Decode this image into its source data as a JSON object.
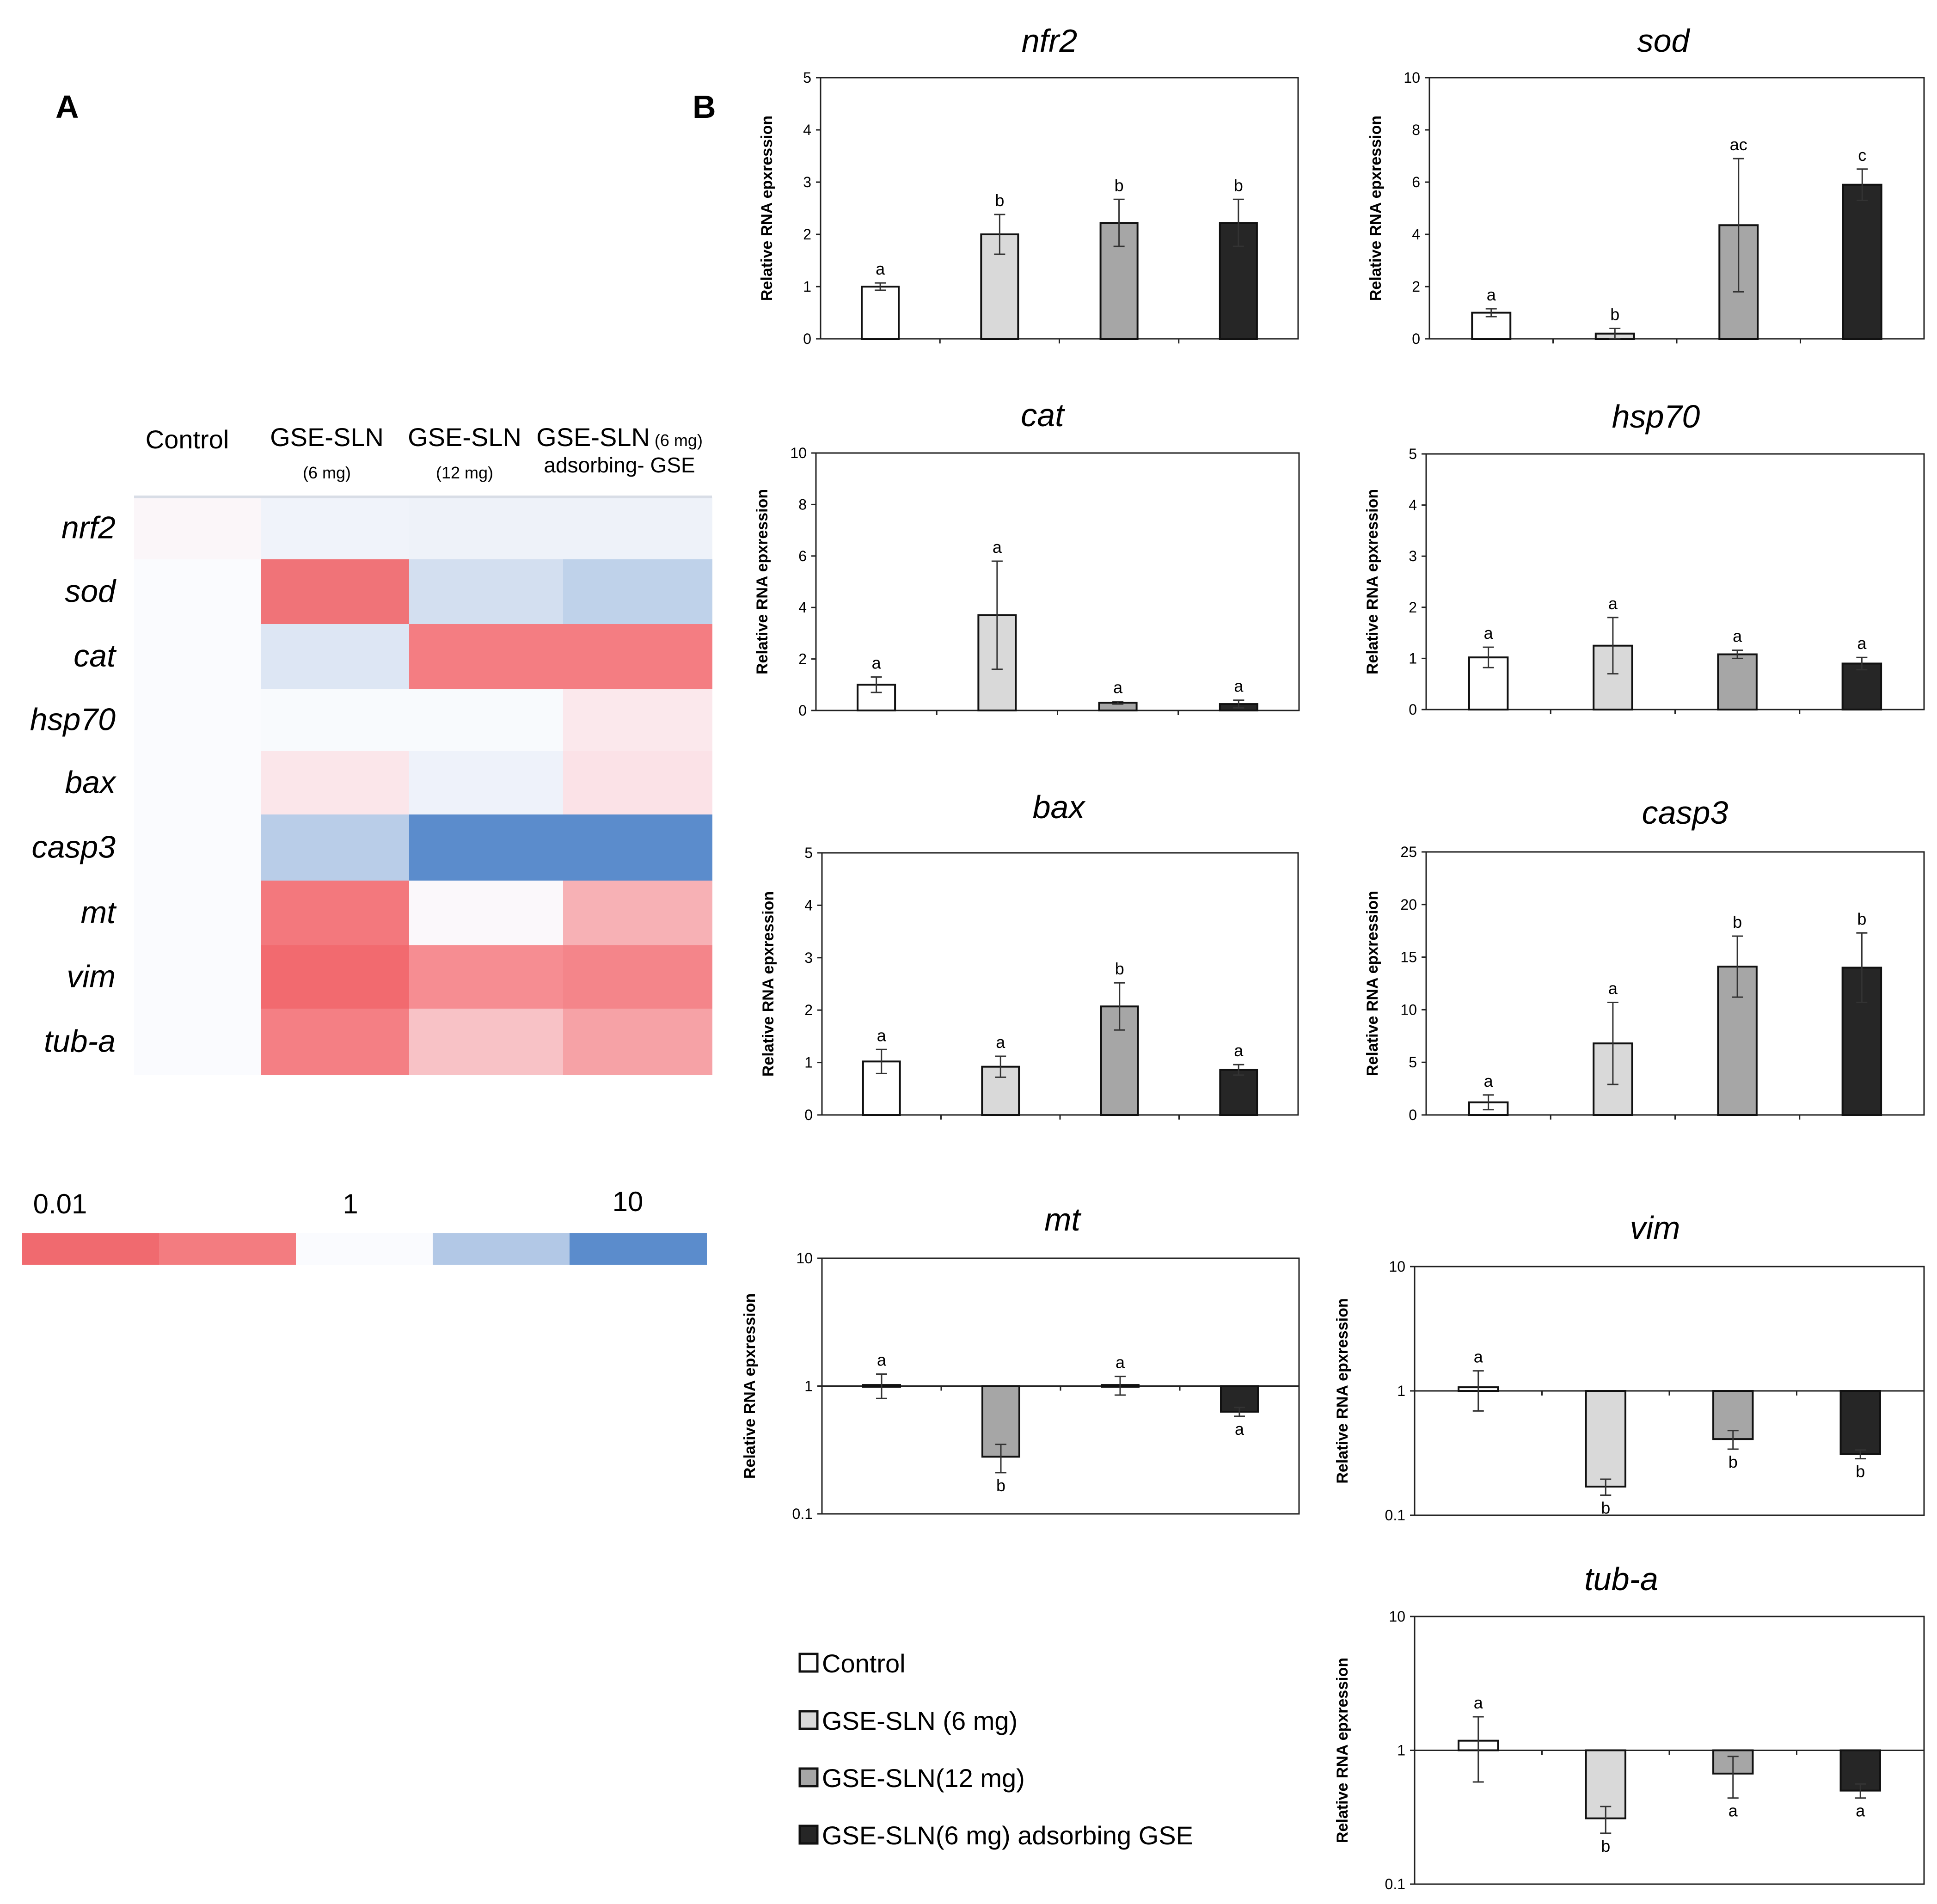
{
  "panel_labels": {
    "A": "A",
    "B": "B"
  },
  "heatmap": {
    "columns": [
      {
        "main": "Control",
        "sub": ""
      },
      {
        "main": "GSE-SLN",
        "sub": "(6 mg)"
      },
      {
        "main": "GSE-SLN",
        "sub": "(12  mg)"
      },
      {
        "main": "GSE-SLN",
        "main_suffix": "(6 mg)",
        "sub": "adsorbing- GSE"
      }
    ],
    "rows": [
      "nrf2",
      "sod",
      "cat",
      "hsp70",
      "bax",
      "casp3",
      "mt",
      "vim",
      "tub-a"
    ],
    "cells": [
      [
        "#fbf6f9",
        "#f0f3fa",
        "#eef2f9",
        "#eef2f9"
      ],
      [
        "#fafbfe",
        "#f07378",
        "#d3dff0",
        "#bfd2ea"
      ],
      [
        "#fafbfe",
        "#dde6f4",
        "#f47d82",
        "#f47d82"
      ],
      [
        "#fafbfe",
        "#f8fafd",
        "#f8fafd",
        "#fbe8ec"
      ],
      [
        "#fafbfe",
        "#fbe6ea",
        "#eef2fa",
        "#fbe2e7"
      ],
      [
        "#fafbfe",
        "#b9cde8",
        "#5b8ccc",
        "#5b8ccc"
      ],
      [
        "#fafbfe",
        "#f3787d",
        "#fbf8fb",
        "#f7b1b5"
      ],
      [
        "#fafbfe",
        "#f26a6f",
        "#f68d92",
        "#f4858a"
      ],
      [
        "#fafbfe",
        "#f47f84",
        "#f8c2c6",
        "#f6a2a6"
      ]
    ],
    "scale": {
      "labels": [
        "0.01",
        "1",
        "10"
      ],
      "colors": [
        "#f06a6f",
        "#f37c80",
        "#fafbfe",
        "#b2c8e6",
        "#5b8ccc"
      ]
    }
  },
  "legend": {
    "items": [
      {
        "label": "Control",
        "color": "#ffffff"
      },
      {
        "label": "GSE-SLN (6 mg)",
        "color": "#d9d9d9"
      },
      {
        "label": "GSE-SLN(12 mg)",
        "color": "#a6a6a6"
      },
      {
        "label": "GSE-SLN(6 mg) adsorbing GSE",
        "color": "#262626"
      }
    ]
  },
  "chart_data": [
    {
      "type": "bar",
      "title": "nfr2",
      "ylabel": "Relative RNA epxression",
      "yscale": "linear",
      "ylim": [
        0,
        5
      ],
      "yticks": [
        "0",
        "1",
        "2",
        "3",
        "4",
        "5"
      ],
      "values": [
        1.0,
        2.0,
        2.22,
        2.22
      ],
      "errors": [
        0.07,
        0.38,
        0.45,
        0.45
      ],
      "labels": [
        "a",
        "b",
        "b",
        "b"
      ]
    },
    {
      "type": "bar",
      "title": "sod",
      "ylabel": "Relative RNA epxression",
      "yscale": "linear",
      "ylim": [
        0,
        10
      ],
      "yticks": [
        "0",
        "2",
        "4",
        "6",
        "8",
        "10"
      ],
      "values": [
        1.0,
        0.2,
        4.35,
        5.9
      ],
      "errors": [
        0.15,
        0.2,
        2.55,
        0.6
      ],
      "labels": [
        "a",
        "b",
        "ac",
        "c"
      ]
    },
    {
      "type": "bar",
      "title": "cat",
      "ylabel": "Relative RNA epxression",
      "yscale": "linear",
      "ylim": [
        0,
        10
      ],
      "yticks": [
        "0",
        "2",
        "4",
        "6",
        "8",
        "10"
      ],
      "values": [
        1.0,
        3.7,
        0.3,
        0.25
      ],
      "errors": [
        0.3,
        2.1,
        0.05,
        0.15
      ],
      "labels": [
        "a",
        "a",
        "a",
        "a"
      ]
    },
    {
      "type": "bar",
      "title": "hsp70",
      "ylabel": "Relative RNA epxression",
      "yscale": "linear",
      "ylim": [
        0,
        5
      ],
      "yticks": [
        "0",
        "1",
        "2",
        "3",
        "4",
        "5"
      ],
      "values": [
        1.02,
        1.25,
        1.08,
        0.9
      ],
      "errors": [
        0.2,
        0.55,
        0.08,
        0.12
      ],
      "labels": [
        "a",
        "a",
        "a",
        "a"
      ]
    },
    {
      "type": "bar",
      "title": "bax",
      "ylabel": "Relative RNA epxression",
      "yscale": "linear",
      "ylim": [
        0,
        5
      ],
      "yticks": [
        "0",
        "1",
        "2",
        "3",
        "4",
        "5"
      ],
      "values": [
        1.02,
        0.92,
        2.07,
        0.86
      ],
      "errors": [
        0.23,
        0.2,
        0.45,
        0.1
      ],
      "labels": [
        "a",
        "a",
        "b",
        "a"
      ]
    },
    {
      "type": "bar",
      "title": "casp3",
      "ylabel": "Relative RNA epxression",
      "yscale": "linear",
      "ylim": [
        0,
        25
      ],
      "yticks": [
        "0",
        "5",
        "10",
        "15",
        "20",
        "25"
      ],
      "values": [
        1.2,
        6.8,
        14.1,
        14.0
      ],
      "errors": [
        0.7,
        3.9,
        2.9,
        3.3
      ],
      "labels": [
        "a",
        "a",
        "b",
        "b"
      ]
    },
    {
      "type": "bar",
      "title": "mt",
      "ylabel": "Relative RNA epxression",
      "yscale": "log",
      "ylim": [
        0.1,
        10
      ],
      "yticks": [
        "0.1",
        "1",
        "10"
      ],
      "values": [
        1.02,
        0.28,
        1.02,
        0.63
      ],
      "errors": [
        0.22,
        0.07,
        0.17,
        0.05
      ],
      "labels": [
        "a",
        "b",
        "a",
        "a"
      ],
      "series_colors": [
        "#ffffff",
        "#a6a6a6",
        "#d9d9d9",
        "#262626"
      ]
    },
    {
      "type": "bar",
      "title": "vim",
      "ylabel": "Relative RNA epxression",
      "yscale": "log",
      "ylim": [
        0.1,
        10
      ],
      "yticks": [
        "0.1",
        "1",
        "10"
      ],
      "values": [
        1.07,
        0.17,
        0.41,
        0.31
      ],
      "errors": [
        0.38,
        0.025,
        0.07,
        0.025
      ],
      "labels": [
        "a",
        "b",
        "b",
        "b"
      ]
    },
    {
      "type": "bar",
      "title": "tub-a",
      "ylabel": "Relative RNA epxression",
      "yscale": "log",
      "ylim": [
        0.1,
        10
      ],
      "yticks": [
        "0.1",
        "1",
        "10"
      ],
      "values": [
        1.18,
        0.31,
        0.67,
        0.5
      ],
      "errors": [
        0.6,
        0.07,
        0.23,
        0.06
      ],
      "labels": [
        "a",
        "b",
        "a",
        "a"
      ]
    }
  ]
}
